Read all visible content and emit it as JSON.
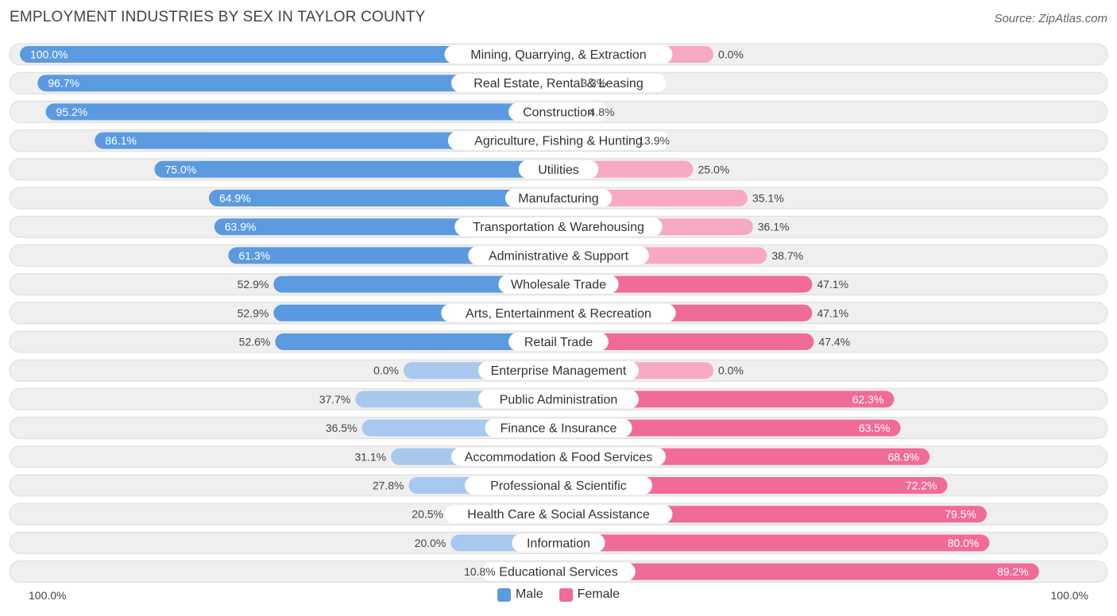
{
  "header": {
    "title": "EMPLOYMENT INDUSTRIES BY SEX IN TAYLOR COUNTY",
    "source": "Source: ZipAtlas.com"
  },
  "axis": {
    "left_label": "100.0%",
    "right_label": "100.0%"
  },
  "legend": {
    "male_label": "Male",
    "female_label": "Female"
  },
  "colors": {
    "male_strong": "#5b9ae0",
    "male_light": "#a8c8ee",
    "female_strong": "#f06b98",
    "female_light": "#f7a9c3",
    "row_bg": "#efefef",
    "row_border": "#dcdcdc"
  },
  "chart_data": {
    "type": "bar",
    "orientation": "horizontal-diverging",
    "title": "EMPLOYMENT INDUSTRIES BY SEX IN TAYLOR COUNTY",
    "xlim": [
      -100,
      100
    ],
    "categories": [
      "Mining, Quarrying, & Extraction",
      "Real Estate, Rental & Leasing",
      "Construction",
      "Agriculture, Fishing & Hunting",
      "Utilities",
      "Manufacturing",
      "Transportation & Warehousing",
      "Administrative & Support",
      "Wholesale Trade",
      "Arts, Entertainment & Recreation",
      "Retail Trade",
      "Enterprise Management",
      "Public Administration",
      "Finance & Insurance",
      "Accommodation & Food Services",
      "Professional & Scientific",
      "Health Care & Social Assistance",
      "Information",
      "Educational Services"
    ],
    "series": [
      {
        "name": "Male",
        "values": [
          100.0,
          96.7,
          95.2,
          86.1,
          75.0,
          64.9,
          63.9,
          61.3,
          52.9,
          52.9,
          52.6,
          0.0,
          37.7,
          36.5,
          31.1,
          27.8,
          20.5,
          20.0,
          10.8
        ],
        "labels": [
          "100.0%",
          "96.7%",
          "95.2%",
          "86.1%",
          "75.0%",
          "64.9%",
          "63.9%",
          "61.3%",
          "52.9%",
          "52.9%",
          "52.6%",
          "0.0%",
          "37.7%",
          "36.5%",
          "31.1%",
          "27.8%",
          "20.5%",
          "20.0%",
          "10.8%"
        ]
      },
      {
        "name": "Female",
        "values": [
          0.0,
          3.3,
          4.8,
          13.9,
          25.0,
          35.1,
          36.1,
          38.7,
          47.1,
          47.1,
          47.4,
          0.0,
          62.3,
          63.5,
          68.9,
          72.2,
          79.5,
          80.0,
          89.2
        ],
        "labels": [
          "0.0%",
          "3.3%",
          "4.8%",
          "13.9%",
          "25.0%",
          "35.1%",
          "36.1%",
          "38.7%",
          "47.1%",
          "47.1%",
          "47.4%",
          "0.0%",
          "62.3%",
          "63.5%",
          "68.9%",
          "72.2%",
          "79.5%",
          "80.0%",
          "89.2%"
        ]
      }
    ],
    "legend_position": "bottom-center"
  }
}
